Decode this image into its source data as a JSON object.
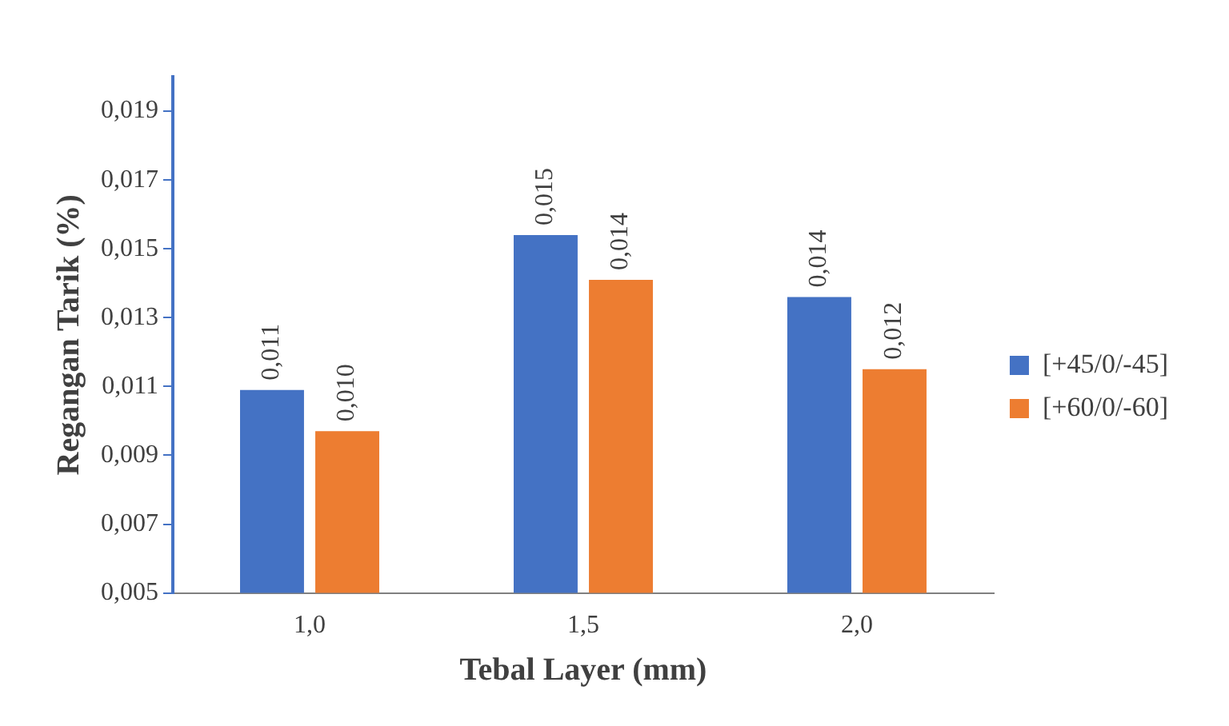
{
  "chart_data": {
    "type": "bar",
    "xlabel": "Tebal Layer (mm)",
    "ylabel": "Regangan Tarik (%)",
    "categories": [
      "1,0",
      "1,5",
      "2,0"
    ],
    "series": [
      {
        "name": "[+45/0/-45]",
        "color": "#4472c4",
        "values": [
          0.0109,
          0.0154,
          0.0136
        ],
        "value_labels": [
          "0,011",
          "0,015",
          "0,014"
        ]
      },
      {
        "name": "[+60/0/-60]",
        "color": "#ed7d31",
        "values": [
          0.0097,
          0.0141,
          0.0115
        ],
        "value_labels": [
          "0,010",
          "0,014",
          "0,012"
        ]
      }
    ],
    "ylim": [
      0.005,
      0.02
    ],
    "yticks": [
      {
        "value": 0.005,
        "label": "0,005"
      },
      {
        "value": 0.007,
        "label": "0,007"
      },
      {
        "value": 0.009,
        "label": "0,009"
      },
      {
        "value": 0.011,
        "label": "0,011"
      },
      {
        "value": 0.013,
        "label": "0,013"
      },
      {
        "value": 0.015,
        "label": "0,015"
      },
      {
        "value": 0.017,
        "label": "0,017"
      },
      {
        "value": 0.019,
        "label": "0,019"
      }
    ],
    "grid": false,
    "legend": "right"
  }
}
